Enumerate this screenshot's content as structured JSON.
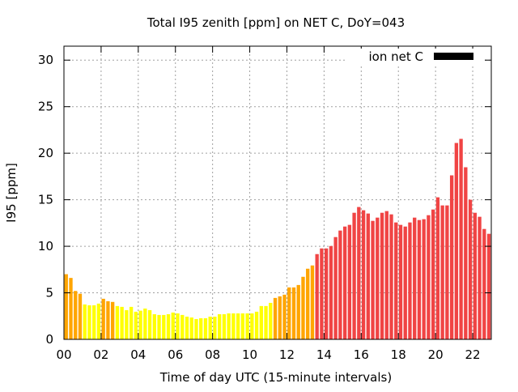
{
  "chart_data": {
    "type": "bar",
    "title": "Total I95 zenith [ppm] on NET C, DoY=043",
    "xlabel": "Time of day UTC (15-minute intervals)",
    "ylabel": "I95 [ppm]",
    "legend": {
      "label": "ion net C",
      "placement": "top-right",
      "color": "#000000"
    },
    "xlim": [
      0,
      23
    ],
    "ylim": [
      0,
      31.5
    ],
    "grid": true,
    "bar_interval_hours": 0.25,
    "x_ticks": [
      0,
      2,
      4,
      6,
      8,
      10,
      12,
      14,
      16,
      18,
      20,
      22
    ],
    "x_tick_labels": [
      "00",
      "02",
      "04",
      "06",
      "08",
      "10",
      "12",
      "14",
      "16",
      "18",
      "20",
      "22"
    ],
    "y_ticks": [
      0,
      5,
      10,
      15,
      20,
      25,
      30
    ],
    "y_tick_labels": [
      "0",
      "5",
      "10",
      "15",
      "20",
      "25",
      "30"
    ],
    "color_levels": {
      "low": "#ffff00",
      "medium": "#ffa500",
      "high": "#f04444"
    },
    "thresholds": {
      "medium": 4.0,
      "high": 8.5
    },
    "values": [
      7.0,
      6.6,
      5.2,
      4.9,
      3.75,
      3.66,
      3.66,
      3.84,
      4.36,
      4.1,
      4.02,
      3.58,
      3.49,
      3.14,
      3.49,
      2.97,
      3.08,
      3.31,
      3.14,
      2.7,
      2.62,
      2.62,
      2.7,
      2.88,
      2.79,
      2.62,
      2.44,
      2.35,
      2.18,
      2.27,
      2.27,
      2.44,
      2.44,
      2.7,
      2.7,
      2.79,
      2.79,
      2.79,
      2.79,
      2.79,
      2.79,
      2.97,
      3.58,
      3.58,
      3.92,
      4.45,
      4.62,
      4.8,
      5.58,
      5.58,
      5.84,
      6.72,
      7.59,
      7.94,
      9.16,
      9.77,
      9.77,
      10.03,
      10.99,
      11.69,
      12.12,
      12.3,
      13.6,
      14.22,
      13.87,
      13.52,
      12.73,
      13.08,
      13.6,
      13.78,
      13.43,
      12.56,
      12.3,
      12.12,
      12.56,
      13.08,
      12.82,
      12.91,
      13.34,
      13.95,
      15.26,
      14.39,
      14.39,
      17.62,
      21.1,
      21.54,
      18.49,
      15.0,
      13.6,
      13.17,
      11.86,
      11.34
    ]
  }
}
